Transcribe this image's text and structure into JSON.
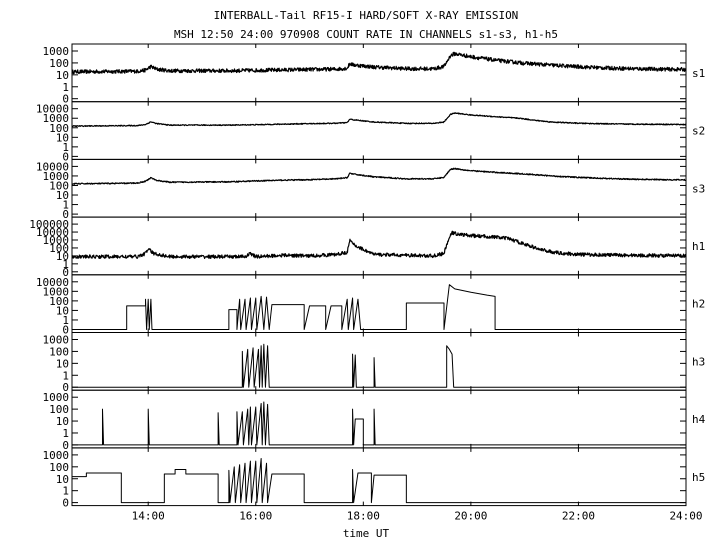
{
  "chart_data": {
    "type": "line",
    "title": "INTERBALL-Tail RF15-I HARD/SOFT X-RAY EMISSION",
    "subtitle": "MSH 12:50 24:00 970908  COUNT RATE IN CHANNELS s1-s3, h1-h5",
    "xlabel": "time UT",
    "xlim": [
      12.583,
      24.0
    ],
    "x_ticks": [
      14,
      16,
      18,
      20,
      22,
      24
    ],
    "x_tick_labels": [
      "14:00",
      "16:00",
      "18:00",
      "20:00",
      "22:00",
      "24:00"
    ],
    "yscale": "log",
    "grid": false,
    "panels": [
      {
        "label": "s1",
        "ylim": [
          0,
          1000
        ],
        "y_tick_labels": [
          "1000",
          "100",
          "10",
          "1",
          "0"
        ],
        "kind": "noisy",
        "noise": 0.16,
        "points": [
          [
            12.583,
            18
          ],
          [
            13.8,
            20
          ],
          [
            13.95,
            25
          ],
          [
            14.05,
            50
          ],
          [
            14.15,
            30
          ],
          [
            14.4,
            22
          ],
          [
            15.5,
            22
          ],
          [
            16.0,
            24
          ],
          [
            16.5,
            26
          ],
          [
            17.0,
            28
          ],
          [
            17.5,
            30
          ],
          [
            17.7,
            36
          ],
          [
            17.75,
            90
          ],
          [
            17.8,
            70
          ],
          [
            18.2,
            45
          ],
          [
            18.8,
            33
          ],
          [
            19.3,
            32
          ],
          [
            19.5,
            50
          ],
          [
            19.62,
            400
          ],
          [
            19.7,
            600
          ],
          [
            20.0,
            330
          ],
          [
            20.5,
            160
          ],
          [
            21.0,
            95
          ],
          [
            21.5,
            65
          ],
          [
            22.0,
            48
          ],
          [
            22.5,
            38
          ],
          [
            23.0,
            33
          ],
          [
            23.5,
            30
          ],
          [
            24.0,
            28
          ]
        ]
      },
      {
        "label": "s2",
        "ylim": [
          0,
          10000
        ],
        "y_tick_labels": [
          "10000",
          "1000",
          "100",
          "10",
          "1",
          "0"
        ],
        "kind": "noisy",
        "noise": 0.05,
        "points": [
          [
            12.583,
            150
          ],
          [
            13.8,
            170
          ],
          [
            13.95,
            220
          ],
          [
            14.05,
            420
          ],
          [
            14.15,
            280
          ],
          [
            14.4,
            190
          ],
          [
            15.5,
            190
          ],
          [
            16.0,
            210
          ],
          [
            16.5,
            240
          ],
          [
            17.0,
            270
          ],
          [
            17.5,
            300
          ],
          [
            17.7,
            350
          ],
          [
            17.75,
            800
          ],
          [
            17.8,
            700
          ],
          [
            18.2,
            400
          ],
          [
            18.8,
            290
          ],
          [
            19.3,
            290
          ],
          [
            19.5,
            400
          ],
          [
            19.62,
            2500
          ],
          [
            19.7,
            3500
          ],
          [
            20.0,
            2200
          ],
          [
            20.5,
            1400
          ],
          [
            20.9,
            1000
          ],
          [
            21.2,
            600
          ],
          [
            21.5,
            400
          ],
          [
            22.0,
            300
          ],
          [
            22.5,
            260
          ],
          [
            23.0,
            240
          ],
          [
            24.0,
            220
          ]
        ]
      },
      {
        "label": "s3",
        "ylim": [
          0,
          10000
        ],
        "y_tick_labels": [
          "10000",
          "1000",
          "100",
          "10",
          "1",
          "0"
        ],
        "kind": "noisy",
        "noise": 0.06,
        "points": [
          [
            12.583,
            150
          ],
          [
            13.6,
            170
          ],
          [
            13.8,
            180
          ],
          [
            13.95,
            280
          ],
          [
            14.05,
            650
          ],
          [
            14.15,
            350
          ],
          [
            14.4,
            220
          ],
          [
            15.5,
            240
          ],
          [
            16.0,
            300
          ],
          [
            16.5,
            360
          ],
          [
            17.0,
            400
          ],
          [
            17.5,
            500
          ],
          [
            17.7,
            650
          ],
          [
            17.75,
            2000
          ],
          [
            17.8,
            1600
          ],
          [
            18.2,
            800
          ],
          [
            18.8,
            500
          ],
          [
            19.3,
            500
          ],
          [
            19.5,
            700
          ],
          [
            19.62,
            5000
          ],
          [
            19.7,
            6000
          ],
          [
            20.0,
            3500
          ],
          [
            20.5,
            2300
          ],
          [
            21.0,
            1600
          ],
          [
            21.5,
            1000
          ],
          [
            22.0,
            700
          ],
          [
            22.5,
            550
          ],
          [
            23.0,
            450
          ],
          [
            24.0,
            380
          ]
        ]
      },
      {
        "label": "h1",
        "ylim": [
          0,
          100000
        ],
        "y_tick_labels": [
          "100000",
          "10000",
          "1000",
          "100",
          "10",
          "1",
          "0"
        ],
        "kind": "noisy",
        "noise": 0.22,
        "points": [
          [
            12.583,
            8
          ],
          [
            13.8,
            8
          ],
          [
            13.95,
            20
          ],
          [
            14.0,
            80
          ],
          [
            14.1,
            20
          ],
          [
            14.4,
            8
          ],
          [
            15.8,
            8
          ],
          [
            15.9,
            20
          ],
          [
            16.0,
            8
          ],
          [
            16.5,
            12
          ],
          [
            17.0,
            10
          ],
          [
            17.5,
            15
          ],
          [
            17.7,
            30
          ],
          [
            17.75,
            800
          ],
          [
            17.85,
            200
          ],
          [
            18.2,
            15
          ],
          [
            19.3,
            10
          ],
          [
            19.5,
            20
          ],
          [
            19.58,
            1000
          ],
          [
            19.65,
            8000
          ],
          [
            19.8,
            5000
          ],
          [
            20.0,
            3500
          ],
          [
            20.4,
            2500
          ],
          [
            20.7,
            1500
          ],
          [
            21.0,
            300
          ],
          [
            21.3,
            60
          ],
          [
            21.6,
            25
          ],
          [
            22.0,
            15
          ],
          [
            23.0,
            12
          ],
          [
            24.0,
            10
          ]
        ]
      },
      {
        "label": "h2",
        "ylim": [
          0,
          10000
        ],
        "y_tick_labels": [
          "10000",
          "1000",
          "100",
          "10",
          "1",
          "0"
        ],
        "kind": "step",
        "points": [
          [
            12.583,
            0
          ],
          [
            13.6,
            0
          ],
          [
            13.6,
            30
          ],
          [
            13.95,
            30
          ],
          [
            13.95,
            150
          ],
          [
            13.97,
            0
          ],
          [
            14.0,
            150
          ],
          [
            14.02,
            0
          ],
          [
            14.05,
            150
          ],
          [
            14.07,
            0
          ],
          [
            15.5,
            0
          ],
          [
            15.5,
            12
          ],
          [
            15.65,
            12
          ],
          [
            15.65,
            0
          ],
          [
            15.7,
            150
          ],
          [
            15.72,
            0
          ],
          [
            15.8,
            150
          ],
          [
            15.82,
            0
          ],
          [
            15.9,
            200
          ],
          [
            15.92,
            0
          ],
          [
            16.0,
            200
          ],
          [
            16.02,
            0
          ],
          [
            16.1,
            300
          ],
          [
            16.15,
            0
          ],
          [
            16.2,
            250
          ],
          [
            16.25,
            0
          ],
          [
            16.3,
            40
          ],
          [
            16.9,
            40
          ],
          [
            16.9,
            0
          ],
          [
            17.0,
            30
          ],
          [
            17.3,
            30
          ],
          [
            17.3,
            0
          ],
          [
            17.4,
            30
          ],
          [
            17.6,
            30
          ],
          [
            17.6,
            0
          ],
          [
            17.7,
            150
          ],
          [
            17.72,
            0
          ],
          [
            17.8,
            200
          ],
          [
            17.82,
            0
          ],
          [
            17.9,
            150
          ],
          [
            17.95,
            0
          ],
          [
            18.8,
            0
          ],
          [
            18.8,
            60
          ],
          [
            19.5,
            60
          ],
          [
            19.5,
            0
          ],
          [
            19.6,
            5000
          ],
          [
            19.7,
            1800
          ],
          [
            20.0,
            800
          ],
          [
            20.3,
            400
          ],
          [
            20.45,
            300
          ],
          [
            20.45,
            0
          ],
          [
            24.0,
            0
          ]
        ]
      },
      {
        "label": "h3",
        "ylim": [
          0,
          1000
        ],
        "y_tick_labels": [
          "1000",
          "100",
          "10",
          "1",
          "0"
        ],
        "kind": "step",
        "points": [
          [
            12.583,
            0
          ],
          [
            15.75,
            0
          ],
          [
            15.75,
            100
          ],
          [
            15.77,
            0
          ],
          [
            15.85,
            150
          ],
          [
            15.87,
            0
          ],
          [
            15.95,
            200
          ],
          [
            15.97,
            0
          ],
          [
            16.05,
            150
          ],
          [
            16.07,
            0
          ],
          [
            16.1,
            300
          ],
          [
            16.12,
            0
          ],
          [
            16.15,
            400
          ],
          [
            16.18,
            0
          ],
          [
            16.22,
            300
          ],
          [
            16.25,
            0
          ],
          [
            17.8,
            0
          ],
          [
            17.8,
            60
          ],
          [
            17.82,
            0
          ],
          [
            17.85,
            50
          ],
          [
            17.87,
            0
          ],
          [
            18.2,
            0
          ],
          [
            18.2,
            30
          ],
          [
            18.22,
            0
          ],
          [
            19.55,
            0
          ],
          [
            19.55,
            300
          ],
          [
            19.6,
            150
          ],
          [
            19.65,
            60
          ],
          [
            19.68,
            0
          ],
          [
            24.0,
            0
          ]
        ]
      },
      {
        "label": "h4",
        "ylim": [
          0,
          1000
        ],
        "y_tick_labels": [
          "1000",
          "100",
          "10",
          "1",
          "0"
        ],
        "kind": "step",
        "points": [
          [
            12.583,
            0
          ],
          [
            13.15,
            0
          ],
          [
            13.15,
            100
          ],
          [
            13.17,
            0
          ],
          [
            14.0,
            0
          ],
          [
            14.0,
            100
          ],
          [
            14.02,
            0
          ],
          [
            15.3,
            0
          ],
          [
            15.3,
            50
          ],
          [
            15.32,
            0
          ],
          [
            15.65,
            0
          ],
          [
            15.65,
            60
          ],
          [
            15.67,
            0
          ],
          [
            15.75,
            60
          ],
          [
            15.77,
            0
          ],
          [
            15.85,
            100
          ],
          [
            15.87,
            0
          ],
          [
            15.9,
            150
          ],
          [
            15.92,
            0
          ],
          [
            16.0,
            150
          ],
          [
            16.02,
            0
          ],
          [
            16.1,
            300
          ],
          [
            16.12,
            0
          ],
          [
            16.15,
            400
          ],
          [
            16.18,
            0
          ],
          [
            16.22,
            250
          ],
          [
            16.25,
            0
          ],
          [
            17.8,
            0
          ],
          [
            17.8,
            100
          ],
          [
            17.82,
            0
          ],
          [
            17.85,
            15
          ],
          [
            18.0,
            15
          ],
          [
            18.0,
            0
          ],
          [
            18.2,
            0
          ],
          [
            18.2,
            100
          ],
          [
            18.22,
            0
          ],
          [
            24.0,
            0
          ]
        ]
      },
      {
        "label": "h5",
        "ylim": [
          0,
          1000
        ],
        "y_tick_labels": [
          "1000",
          "100",
          "10",
          "1",
          "0"
        ],
        "kind": "step",
        "points": [
          [
            12.583,
            0
          ],
          [
            12.583,
            15
          ],
          [
            12.85,
            15
          ],
          [
            12.85,
            30
          ],
          [
            13.5,
            30
          ],
          [
            13.5,
            0
          ],
          [
            14.3,
            0
          ],
          [
            14.3,
            25
          ],
          [
            14.5,
            25
          ],
          [
            14.5,
            60
          ],
          [
            14.7,
            60
          ],
          [
            14.7,
            25
          ],
          [
            15.3,
            25
          ],
          [
            15.3,
            0
          ],
          [
            15.5,
            0
          ],
          [
            15.5,
            50
          ],
          [
            15.52,
            0
          ],
          [
            15.6,
            100
          ],
          [
            15.62,
            0
          ],
          [
            15.7,
            150
          ],
          [
            15.72,
            0
          ],
          [
            15.8,
            200
          ],
          [
            15.82,
            0
          ],
          [
            15.9,
            300
          ],
          [
            15.92,
            0
          ],
          [
            16.0,
            300
          ],
          [
            16.02,
            0
          ],
          [
            16.1,
            500
          ],
          [
            16.12,
            0
          ],
          [
            16.2,
            200
          ],
          [
            16.22,
            0
          ],
          [
            16.3,
            25
          ],
          [
            16.9,
            25
          ],
          [
            16.9,
            0
          ],
          [
            17.8,
            0
          ],
          [
            17.8,
            60
          ],
          [
            17.82,
            0
          ],
          [
            17.9,
            30
          ],
          [
            18.15,
            30
          ],
          [
            18.15,
            0
          ],
          [
            18.2,
            20
          ],
          [
            18.8,
            20
          ],
          [
            18.8,
            0
          ],
          [
            24.0,
            0
          ]
        ]
      }
    ]
  }
}
